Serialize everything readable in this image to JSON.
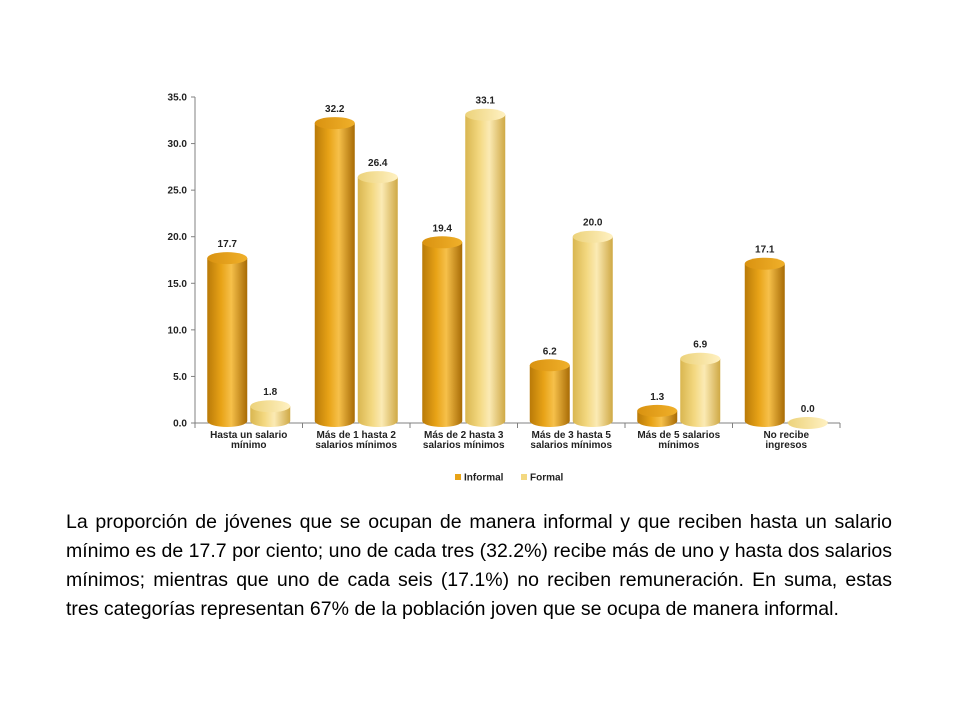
{
  "chart_data": {
    "type": "bar",
    "categories": [
      [
        "Hasta un salario",
        "mínimo"
      ],
      [
        "Más de 1 hasta 2",
        "salarios mínimos"
      ],
      [
        "Más de 2 hasta 3",
        "salarios mínimos"
      ],
      [
        "Más de 3 hasta 5",
        "salarios mínimos"
      ],
      [
        "Más de 5 salarios",
        "mínimos"
      ],
      [
        "No recibe",
        "ingresos"
      ]
    ],
    "series": [
      {
        "name": "Informal",
        "values": [
          17.7,
          32.2,
          19.4,
          6.2,
          1.3,
          17.1
        ],
        "value_labels": [
          "17.7",
          "32.2",
          "19.4",
          "6.2",
          "1.3",
          "17.1"
        ],
        "color": "#e8a317"
      },
      {
        "name": "Formal",
        "values": [
          1.8,
          26.4,
          33.1,
          20.0,
          6.9,
          0.0
        ],
        "value_labels": [
          "1.8",
          "26.4",
          "33.1",
          "20.0",
          "6.9",
          "0.0"
        ],
        "color": "#f3d880"
      }
    ],
    "ylim": [
      0,
      35
    ],
    "yticks": [
      "0.0",
      "5.0",
      "10.0",
      "15.0",
      "20.0",
      "25.0",
      "30.0",
      "35.0"
    ],
    "legend_position": "bottom",
    "grid": false
  },
  "caption": "La proporción de jóvenes que se ocupan de manera informal y que reciben hasta un salario mínimo es de 17.7 por ciento; uno de cada tres (32.2%) recibe más de uno y hasta dos salarios mínimos; mientras que uno de cada seis (17.1%) no reciben remuneración. En suma, estas tres categorías representan 67% de la población joven que se ocupa de manera informal."
}
